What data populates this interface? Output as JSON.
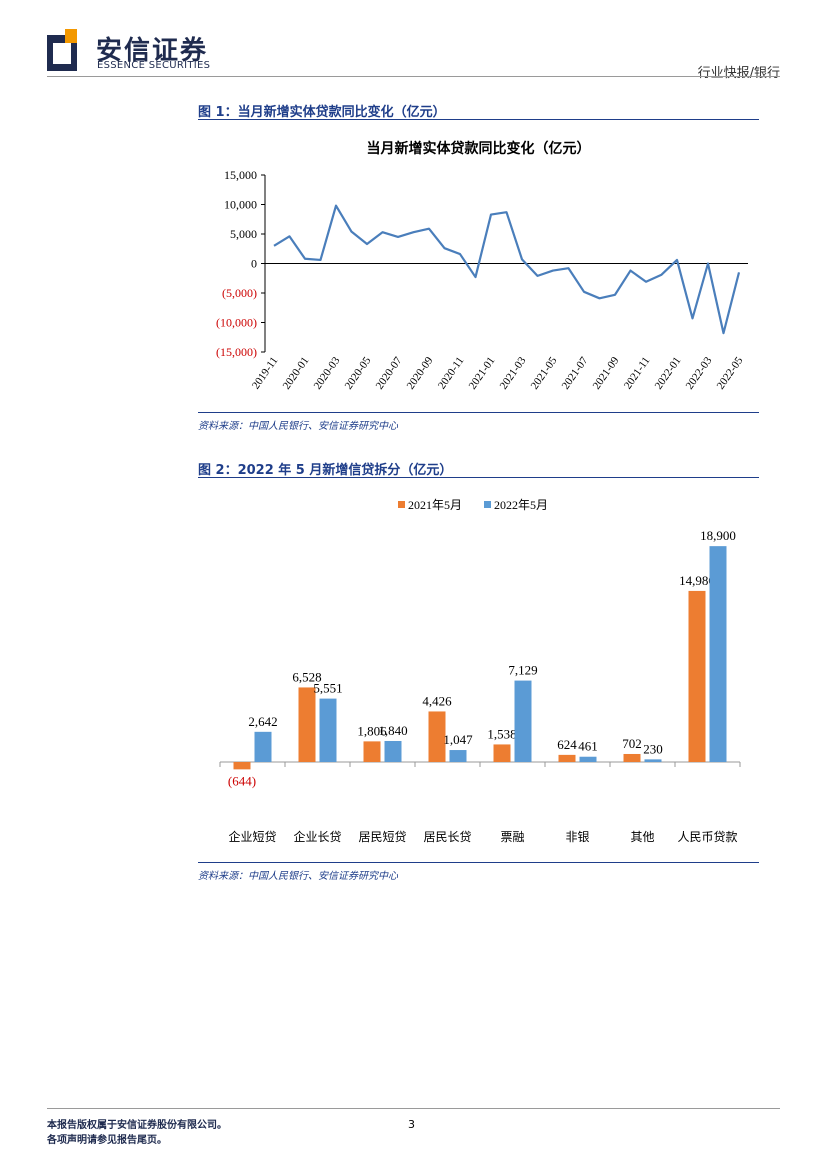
{
  "header": {
    "brand_cn": "安信证券",
    "brand_en": "ESSENCE SECURITIES",
    "category": "行业快报/银行"
  },
  "figure1": {
    "title": "图 1：当月新增实体贷款同比变化（亿元）",
    "source": "资料来源：中国人民银行、安信证券研究中心"
  },
  "figure2": {
    "title": "图 2：2022 年 5 月新增信贷拆分（亿元）",
    "source": "资料来源：中国人民银行、安信证券研究中心"
  },
  "chart_data": [
    {
      "type": "line",
      "title": "当月新增实体贷款同比变化（亿元）",
      "xlabel": "",
      "ylabel": "",
      "ylim": [
        -15000,
        15000
      ],
      "yticks": [
        15000,
        10000,
        5000,
        0,
        -5000,
        -10000,
        -15000
      ],
      "ytick_labels": [
        "15,000",
        "10,000",
        "5,000",
        "0",
        "(5,000)",
        "(10,000)",
        "(15,000)"
      ],
      "negative_tick_color": "#cc0000",
      "line_color": "#4a7ebb",
      "x": [
        "2019-11",
        "2019-12",
        "2020-01",
        "2020-02",
        "2020-03",
        "2020-04",
        "2020-05",
        "2020-06",
        "2020-07",
        "2020-08",
        "2020-09",
        "2020-10",
        "2020-11",
        "2020-12",
        "2021-01",
        "2021-02",
        "2021-03",
        "2021-04",
        "2021-05",
        "2021-06",
        "2021-07",
        "2021-08",
        "2021-09",
        "2021-10",
        "2021-11",
        "2021-12",
        "2022-01",
        "2022-02",
        "2022-03",
        "2022-04",
        "2022-05"
      ],
      "x_tick_labels": [
        "2019-11",
        "2020-01",
        "2020-03",
        "2020-05",
        "2020-07",
        "2020-09",
        "2020-11",
        "2021-01",
        "2021-03",
        "2021-05",
        "2021-07",
        "2021-09",
        "2021-11",
        "2022-01",
        "2022-03",
        "2022-05"
      ],
      "values": [
        3000,
        4600,
        800,
        600,
        9800,
        5400,
        3300,
        5300,
        4500,
        5300,
        5900,
        2600,
        1600,
        -2300,
        8300,
        8700,
        700,
        -2100,
        -1200,
        -800,
        -4800,
        -5900,
        -5300,
        -1200,
        -3100,
        -1900,
        600,
        -9300,
        0,
        -11800,
        -1500
      ]
    },
    {
      "type": "bar",
      "title": "",
      "categories": [
        "企业短贷",
        "企业长贷",
        "居民短贷",
        "居民长贷",
        "票融",
        "非银",
        "其他",
        "人民币贷款"
      ],
      "series": [
        {
          "name": "2021年5月",
          "color": "#ed7d31",
          "values": [
            -644,
            6528,
            1806,
            4426,
            1538,
            624,
            702,
            14980
          ]
        },
        {
          "name": "2022年5月",
          "color": "#5b9bd5",
          "values": [
            2642,
            5551,
            1840,
            1047,
            7129,
            461,
            230,
            18900
          ]
        }
      ],
      "value_labels": {
        "2021年5月": [
          "(644)",
          "6,528",
          "1,806",
          "4,426",
          "1,538",
          "624",
          "702",
          "14,980"
        ],
        "2022年5月": [
          "2,642",
          "5,551",
          "1,840",
          "1,047",
          "7,129",
          "461",
          "230",
          "18,900"
        ]
      },
      "negative_label_color": "#cc0000",
      "legend": "top"
    }
  ],
  "footer": {
    "line1": "本报告版权属于安信证券股份有限公司。",
    "line2": "各项声明请参见报告尾页。",
    "page": "3"
  }
}
